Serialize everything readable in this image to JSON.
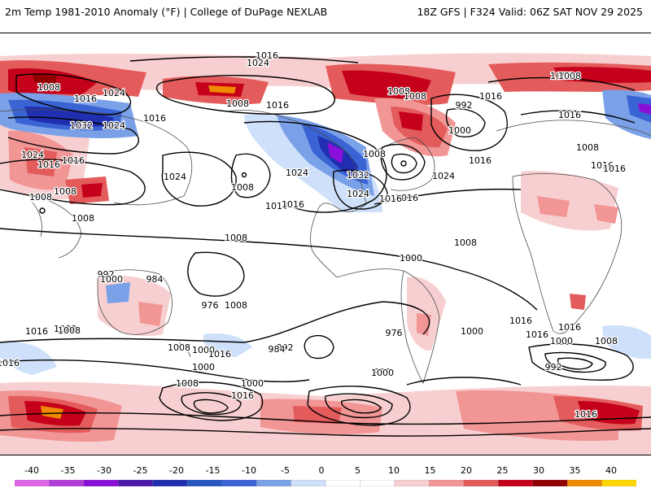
{
  "header": {
    "title": "2m Temp 1981-2010 Anomaly (°F) | College of DuPage NEXLAB",
    "run_info": "18Z GFS | F324 Valid: 06Z SAT NOV 29 2025"
  },
  "colors": {
    "cold_deep": "#8a0fd8",
    "cold_dark": "#1f2fb0",
    "cold": "#3a63d4",
    "cold_mid": "#7aa1e8",
    "cold_light": "#cfe0fa",
    "warm_light": "#f8cfd0",
    "warm": "#f19595",
    "warm_mid": "#e35b5b",
    "warm_dark": "#c4001a",
    "warm_deep": "#900000",
    "hot": "#f08a00",
    "hot_extreme": "#ffd700",
    "isobar": "#000000",
    "coast": "#4d4d4d"
  },
  "isobar_labels": [
    "1016",
    "1024",
    "1008",
    "1016",
    "1024",
    "1032",
    "1024",
    "1016",
    "1024",
    "1016",
    "1008",
    "1008",
    "1008",
    "1016",
    "1024",
    "1008",
    "1016",
    "1024",
    "1008",
    "1016",
    "1016",
    "1032",
    "1024",
    "1016",
    "1008",
    "1008",
    "1016",
    "1000",
    "992",
    "1016",
    "1024",
    "1016",
    "1008",
    "1000",
    "1008",
    "1008",
    "1016",
    "1008",
    "1016",
    "1016",
    "1008",
    "992",
    "1000",
    "984",
    "976",
    "1008",
    "1000",
    "976",
    "992",
    "984",
    "1000",
    "992",
    "1000",
    "1008",
    "1016",
    "1000",
    "1008",
    "1016",
    "1000",
    "1008",
    "1016",
    "1008",
    "1016",
    "1016",
    "1000",
    "1016",
    "1016",
    "992",
    "1000",
    "1008",
    "1016"
  ],
  "colorbar": {
    "ticks": [
      "-40",
      "-35",
      "-30",
      "-25",
      "-20",
      "-15",
      "-10",
      "-5",
      "0",
      "5",
      "10",
      "15",
      "20",
      "25",
      "30",
      "35",
      "40"
    ],
    "colors": [
      "#e066e8",
      "#b13cd6",
      "#8a0fd8",
      "#4b1aa8",
      "#1f2fb0",
      "#2756c2",
      "#3a63d4",
      "#7aa1e8",
      "#cfe0fa",
      "#ffffff",
      "#ffffff",
      "#f8cfd0",
      "#f19595",
      "#e35b5b",
      "#c4001a",
      "#900000",
      "#f08a00",
      "#ffd700"
    ]
  }
}
